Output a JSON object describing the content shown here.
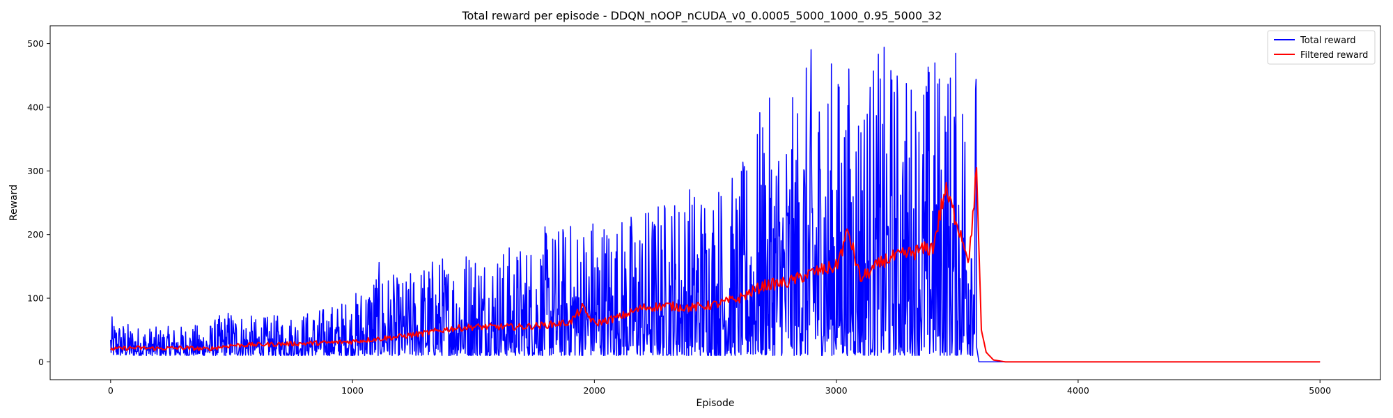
{
  "chart_data": {
    "type": "line",
    "title": "Total reward per episode - DDQN_nOOP_nCUDA_v0_0.0005_5000_1000_0.95_5000_32",
    "xlabel": "Episode",
    "ylabel": "Reward",
    "xlim": [
      -250,
      5250
    ],
    "ylim": [
      -28,
      528
    ],
    "xticks": [
      0,
      1000,
      2000,
      3000,
      4000,
      5000
    ],
    "yticks": [
      0,
      100,
      200,
      300,
      400,
      500
    ],
    "grid": false,
    "legend": "top-right",
    "series": [
      {
        "name": "Total reward",
        "color": "#0000ff",
        "x": [
          0,
          100,
          200,
          300,
          400,
          500,
          600,
          700,
          800,
          900,
          1000,
          1100,
          1200,
          1300,
          1400,
          1500,
          1600,
          1700,
          1800,
          1900,
          2000,
          2100,
          2200,
          2300,
          2400,
          2500,
          2600,
          2700,
          2800,
          2900,
          3000,
          3100,
          3200,
          3300,
          3400,
          3500,
          3580,
          3590,
          4000,
          5000
        ],
        "envelope_min": [
          10,
          10,
          10,
          10,
          10,
          10,
          10,
          10,
          10,
          10,
          10,
          10,
          10,
          10,
          10,
          10,
          10,
          10,
          10,
          10,
          10,
          10,
          10,
          10,
          10,
          10,
          10,
          10,
          10,
          10,
          10,
          10,
          10,
          10,
          10,
          10,
          10,
          0,
          0,
          0
        ],
        "envelope_max": [
          72,
          58,
          55,
          58,
          60,
          88,
          70,
          75,
          80,
          90,
          105,
          160,
          130,
          165,
          175,
          195,
          185,
          190,
          215,
          225,
          245,
          235,
          250,
          270,
          290,
          300,
          300,
          420,
          400,
          500,
          480,
          480,
          500,
          470,
          500,
          500,
          500,
          0,
          0,
          0
        ]
      },
      {
        "name": "Filtered reward",
        "color": "#ff0000",
        "x": [
          0,
          100,
          200,
          300,
          400,
          500,
          600,
          700,
          800,
          900,
          1000,
          1100,
          1200,
          1300,
          1400,
          1500,
          1600,
          1700,
          1800,
          1900,
          1950,
          2000,
          2100,
          2200,
          2300,
          2400,
          2500,
          2600,
          2700,
          2800,
          2900,
          3000,
          3050,
          3100,
          3200,
          3300,
          3400,
          3450,
          3500,
          3550,
          3580,
          3600,
          3620,
          3650,
          3700,
          4000,
          5000
        ],
        "y": [
          20,
          22,
          21,
          22,
          20,
          26,
          27,
          28,
          29,
          30,
          32,
          36,
          40,
          45,
          52,
          55,
          55,
          55,
          58,
          62,
          85,
          60,
          70,
          85,
          88,
          85,
          90,
          100,
          120,
          125,
          140,
          150,
          205,
          130,
          160,
          170,
          180,
          270,
          220,
          160,
          305,
          50,
          15,
          3,
          0,
          0,
          0
        ]
      }
    ]
  }
}
